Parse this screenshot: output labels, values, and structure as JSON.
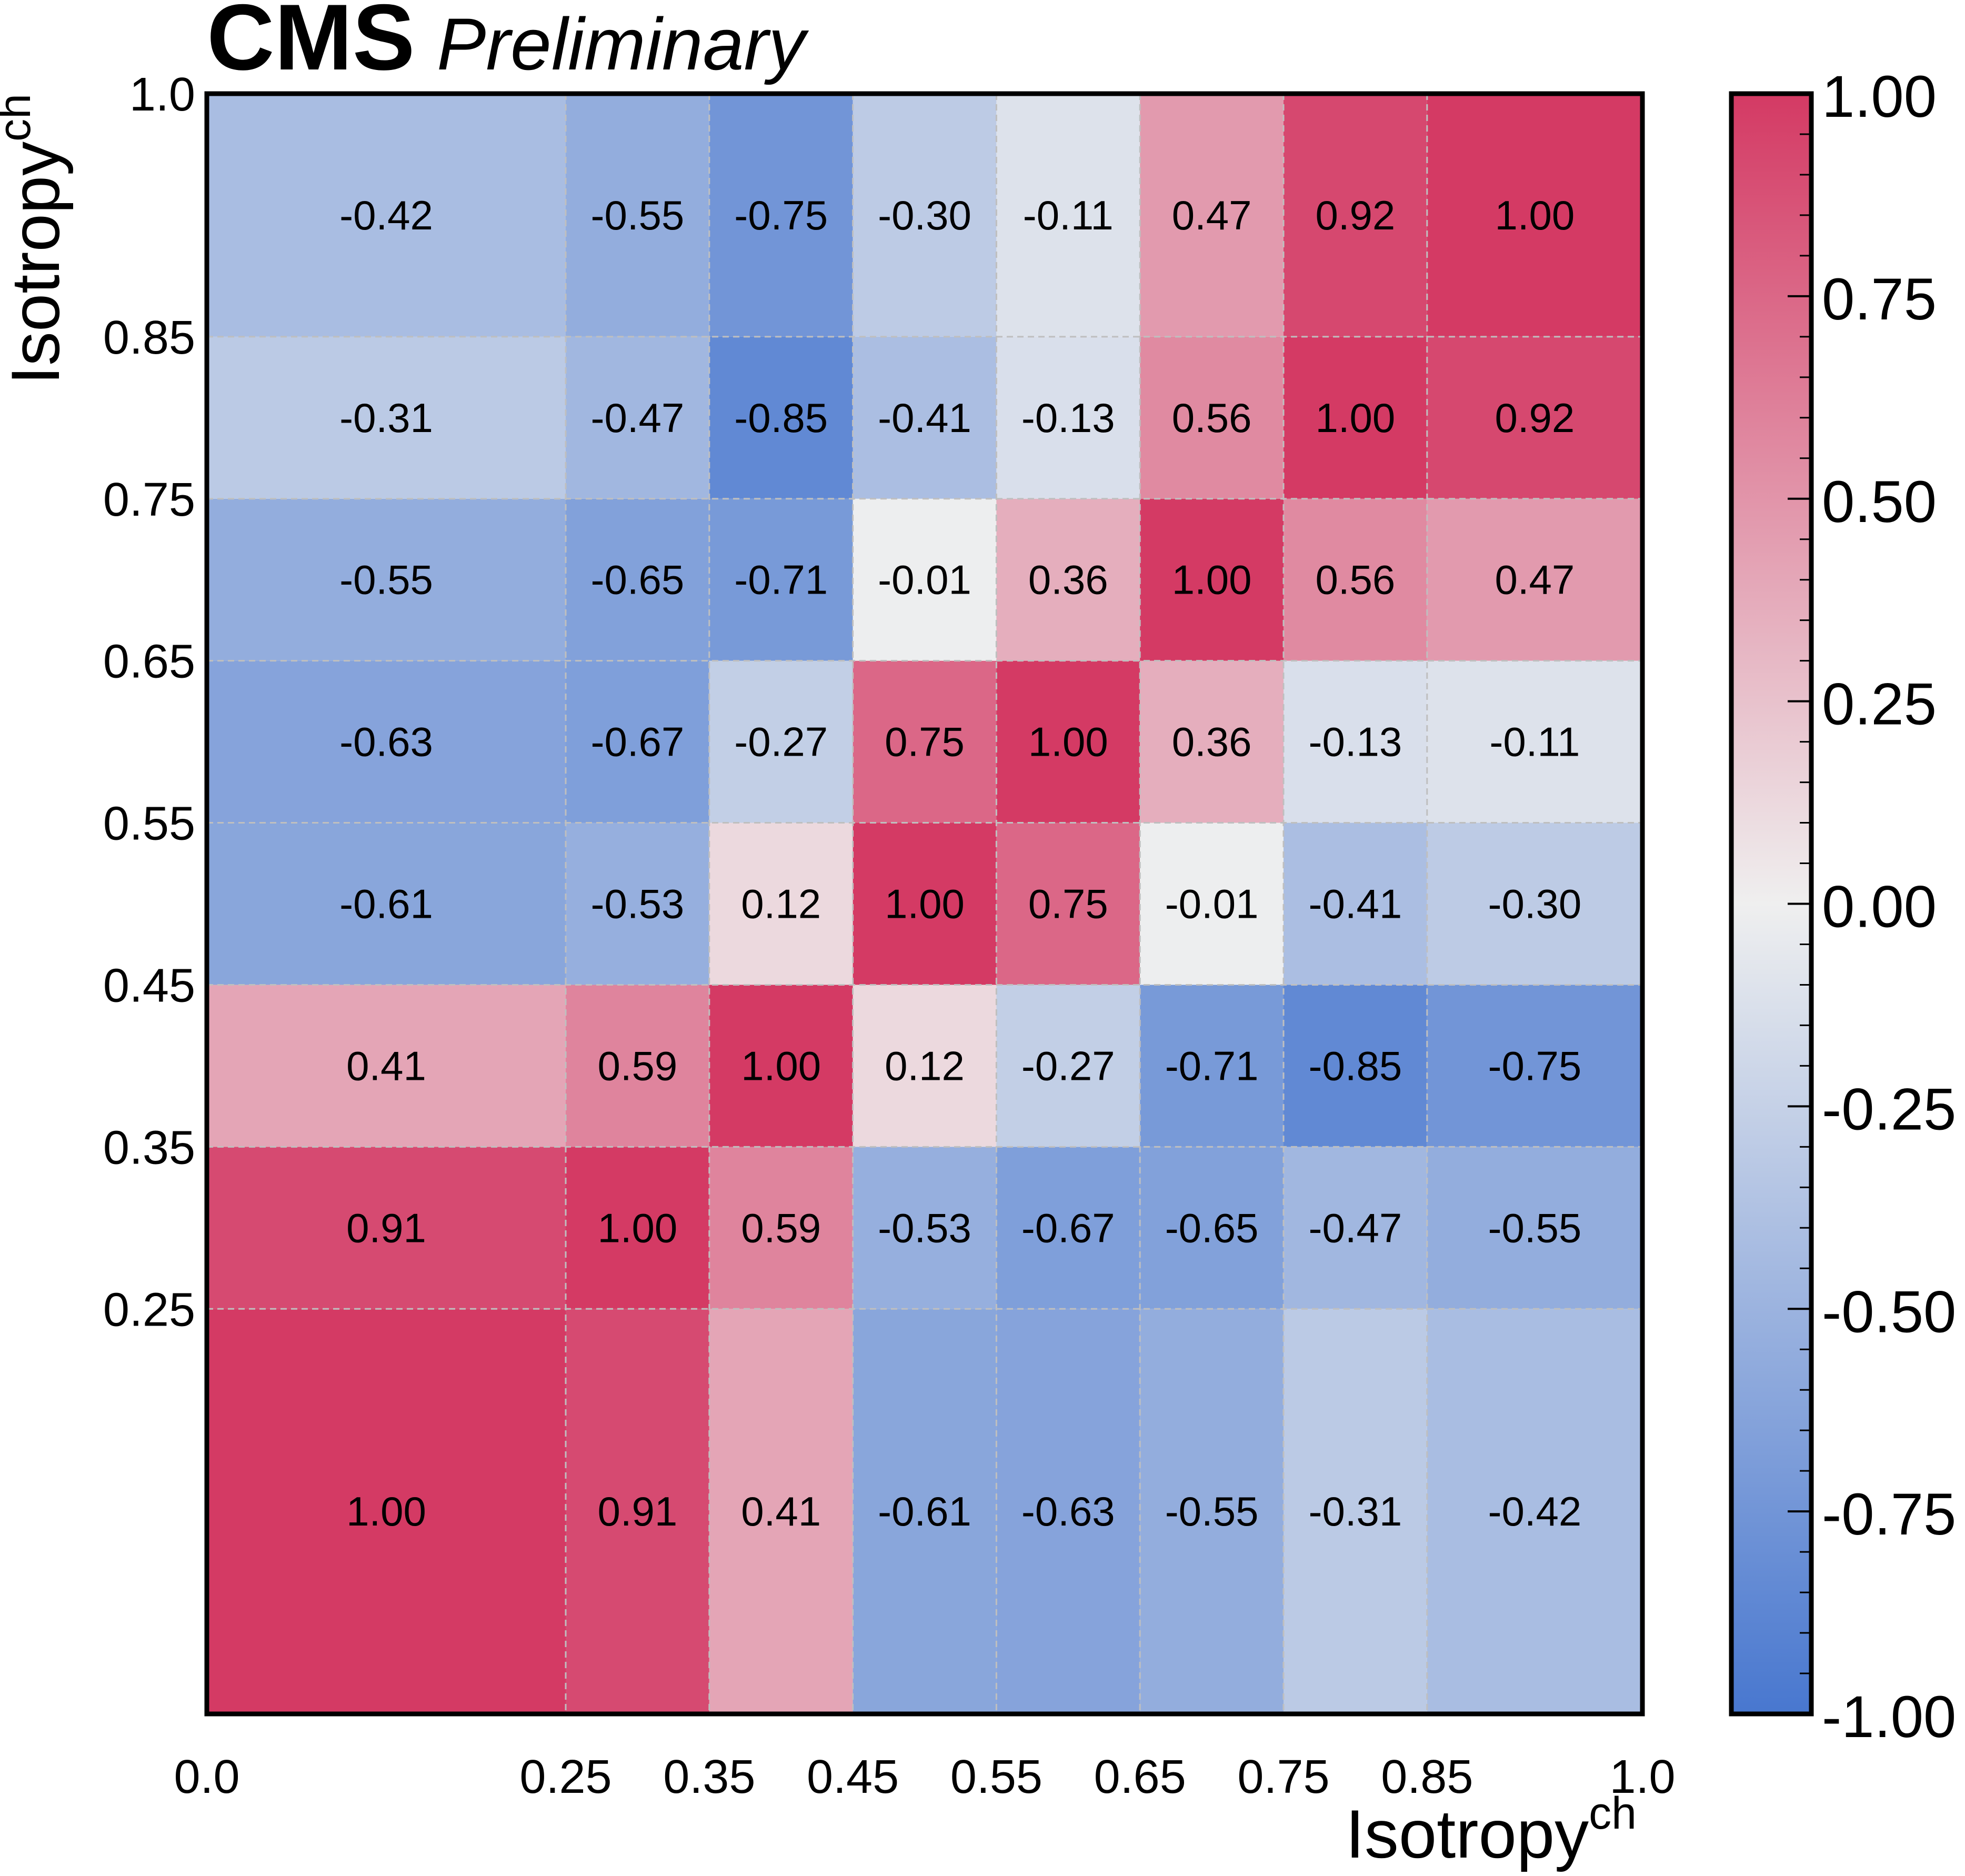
{
  "header": {
    "experiment": "CMS",
    "status": "Preliminary"
  },
  "chart_data": {
    "type": "heatmap",
    "title": "CMS Preliminary",
    "xlabel": "Isotropy",
    "xlabel_sup": "ch",
    "ylabel": "Isotropy",
    "ylabel_sup": "ch",
    "x_edges": [
      0.0,
      0.25,
      0.35,
      0.45,
      0.55,
      0.65,
      0.75,
      0.85,
      1.0
    ],
    "y_edges": [
      0.0,
      0.25,
      0.35,
      0.45,
      0.55,
      0.65,
      0.75,
      0.85,
      1.0
    ],
    "x_tick_labels": [
      "0.0",
      "0.25",
      "0.35",
      "0.45",
      "0.55",
      "0.65",
      "0.75",
      "0.85",
      "1.0"
    ],
    "y_tick_labels": [
      "0.25",
      "0.35",
      "0.45",
      "0.55",
      "0.65",
      "0.75",
      "0.85",
      "1.0"
    ],
    "values": [
      [
        1.0,
        0.91,
        0.41,
        -0.61,
        -0.63,
        -0.55,
        -0.31,
        -0.42
      ],
      [
        0.91,
        1.0,
        0.59,
        -0.53,
        -0.67,
        -0.65,
        -0.47,
        -0.55
      ],
      [
        0.41,
        0.59,
        1.0,
        0.12,
        -0.27,
        -0.71,
        -0.85,
        -0.75
      ],
      [
        -0.61,
        -0.53,
        0.12,
        1.0,
        0.75,
        -0.01,
        -0.41,
        -0.3
      ],
      [
        -0.63,
        -0.67,
        -0.27,
        0.75,
        1.0,
        0.36,
        -0.13,
        -0.11
      ],
      [
        -0.55,
        -0.65,
        -0.71,
        -0.01,
        0.36,
        1.0,
        0.56,
        0.47
      ],
      [
        -0.31,
        -0.47,
        -0.85,
        -0.41,
        -0.13,
        0.56,
        1.0,
        0.92
      ],
      [
        -0.42,
        -0.55,
        -0.75,
        -0.3,
        -0.11,
        0.47,
        0.92,
        1.0
      ]
    ],
    "value_labels": [
      [
        "1.00",
        "0.91",
        "0.41",
        "-0.61",
        "-0.63",
        "-0.55",
        "-0.31",
        "-0.42"
      ],
      [
        "0.91",
        "1.00",
        "0.59",
        "-0.53",
        "-0.67",
        "-0.65",
        "-0.47",
        "-0.55"
      ],
      [
        "0.41",
        "0.59",
        "1.00",
        "0.12",
        "-0.27",
        "-0.71",
        "-0.85",
        "-0.75"
      ],
      [
        "-0.61",
        "-0.53",
        "0.12",
        "1.00",
        "0.75",
        "-0.01",
        "-0.41",
        "-0.30"
      ],
      [
        "-0.63",
        "-0.67",
        "-0.27",
        "0.75",
        "1.00",
        "0.36",
        "-0.13",
        "-0.11"
      ],
      [
        "-0.55",
        "-0.65",
        "-0.71",
        "-0.01",
        "0.36",
        "1.00",
        "0.56",
        "0.47"
      ],
      [
        "-0.31",
        "-0.47",
        "-0.85",
        "-0.41",
        "-0.13",
        "0.56",
        "1.00",
        "0.92"
      ],
      [
        "-0.42",
        "-0.55",
        "-0.75",
        "-0.30",
        "-0.11",
        "0.47",
        "0.92",
        "1.00"
      ]
    ],
    "colorbar": {
      "range": [
        -1.0,
        1.0
      ],
      "tick_values": [
        -1.0,
        -0.75,
        -0.5,
        -0.25,
        0.0,
        0.25,
        0.5,
        0.75,
        1.0
      ],
      "tick_labels": [
        "-1.00",
        "-0.75",
        "-0.50",
        "-0.25",
        "0.00",
        "0.25",
        "0.50",
        "0.75",
        "1.00"
      ],
      "minor_per_major": 5
    },
    "colors": {
      "low": "#4877cf",
      "mid": "#efefef",
      "high": "#d43a64",
      "grid": "#bfbfbf",
      "frame": "#000000"
    }
  }
}
